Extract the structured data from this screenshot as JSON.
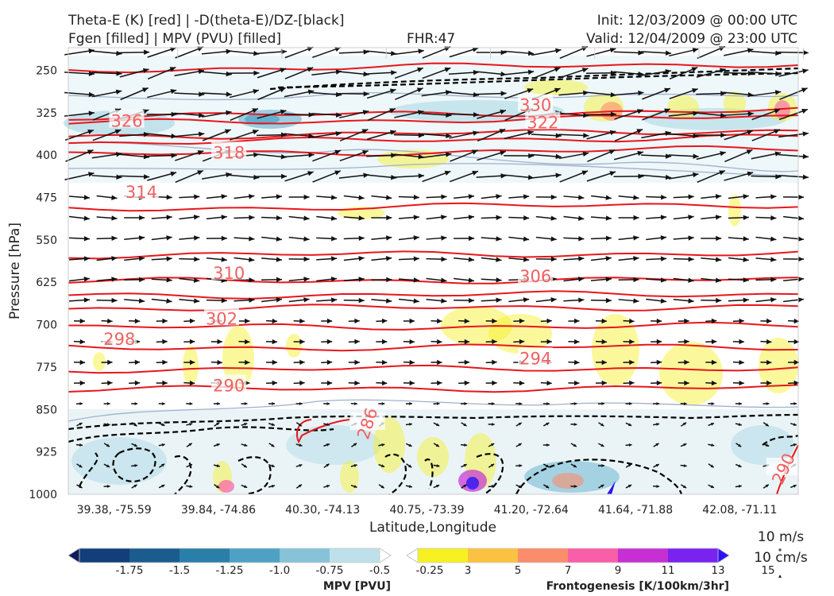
{
  "header": {
    "left_line1": "Theta-E (K) [red] | -D(theta-E)/DZ-[black]",
    "left_line2": "Fgen [filled] | MPV (PVU) [filled]",
    "center": "FHR:47",
    "right_line1": "Init: 12/03/2009 @ 00:00 UTC",
    "right_line2": "Valid: 12/04/2009 @ 23:00 UTC"
  },
  "chart_data": {
    "type": "cross-section",
    "xlabel": "Latitude,Longitude",
    "ylabel": "Pressure [hPa]",
    "x_ticks": [
      "39.38, -75.59",
      "39.84, -74.86",
      "40.30, -74.13",
      "40.75, -73.39",
      "41.20, -72.64",
      "41.64, -71.88",
      "42.08, -71.11"
    ],
    "y_ticks": [
      "250",
      "325",
      "400",
      "475",
      "550",
      "625",
      "700",
      "775",
      "850",
      "925",
      "1000"
    ],
    "y_ticks_num": [
      250,
      325,
      400,
      475,
      550,
      625,
      700,
      775,
      850,
      925,
      1000
    ],
    "ylim": [
      1000,
      210
    ],
    "theta_e_contours": [
      {
        "label": "326",
        "p": 340,
        "pos": 0.08
      },
      {
        "label": "318",
        "p": 396,
        "pos": 0.22
      },
      {
        "label": "314",
        "p": 466,
        "pos": 0.1
      },
      {
        "label": "310",
        "p": 609,
        "pos": 0.22
      },
      {
        "label": "302",
        "p": 690,
        "pos": 0.21
      },
      {
        "label": "298",
        "p": 726,
        "pos": 0.07
      },
      {
        "label": "290",
        "p": 808,
        "pos": 0.22
      },
      {
        "label": "330",
        "p": 312,
        "pos": 0.64
      },
      {
        "label": "322",
        "p": 343,
        "pos": 0.65
      },
      {
        "label": "306",
        "p": 615,
        "pos": 0.64
      },
      {
        "label": "294",
        "p": 760,
        "pos": 0.64
      },
      {
        "label": "286",
        "p": 875,
        "pos": 0.41
      },
      {
        "label": "290",
        "p": 955,
        "pos": 0.98
      }
    ],
    "wind_key": {
      "line1": "10 m/s",
      "line2": "10 cm/s"
    }
  },
  "colorbar_mpv": {
    "title": "MPV [PVU]",
    "labels": [
      "-1.75",
      "-1.5",
      "-1.25",
      "-1.0",
      "-0.75",
      "-0.5",
      "-0.25"
    ],
    "colors": [
      "#0b1d5a",
      "#123e7c",
      "#1a5c8e",
      "#2a7fa8",
      "#4ea1c4",
      "#86c3d9",
      "#bde0ea",
      "#ffffff"
    ]
  },
  "colorbar_fgen": {
    "title": "Frontogenesis [K/100km/3hr]",
    "labels": [
      "3",
      "5",
      "7",
      "9",
      "11",
      "13",
      "15"
    ],
    "colors": [
      "#ffffff",
      "#f7f022",
      "#fbc241",
      "#fb8c6c",
      "#f95ea8",
      "#c62fd4",
      "#7a22ef",
      "#2a14f5"
    ]
  }
}
